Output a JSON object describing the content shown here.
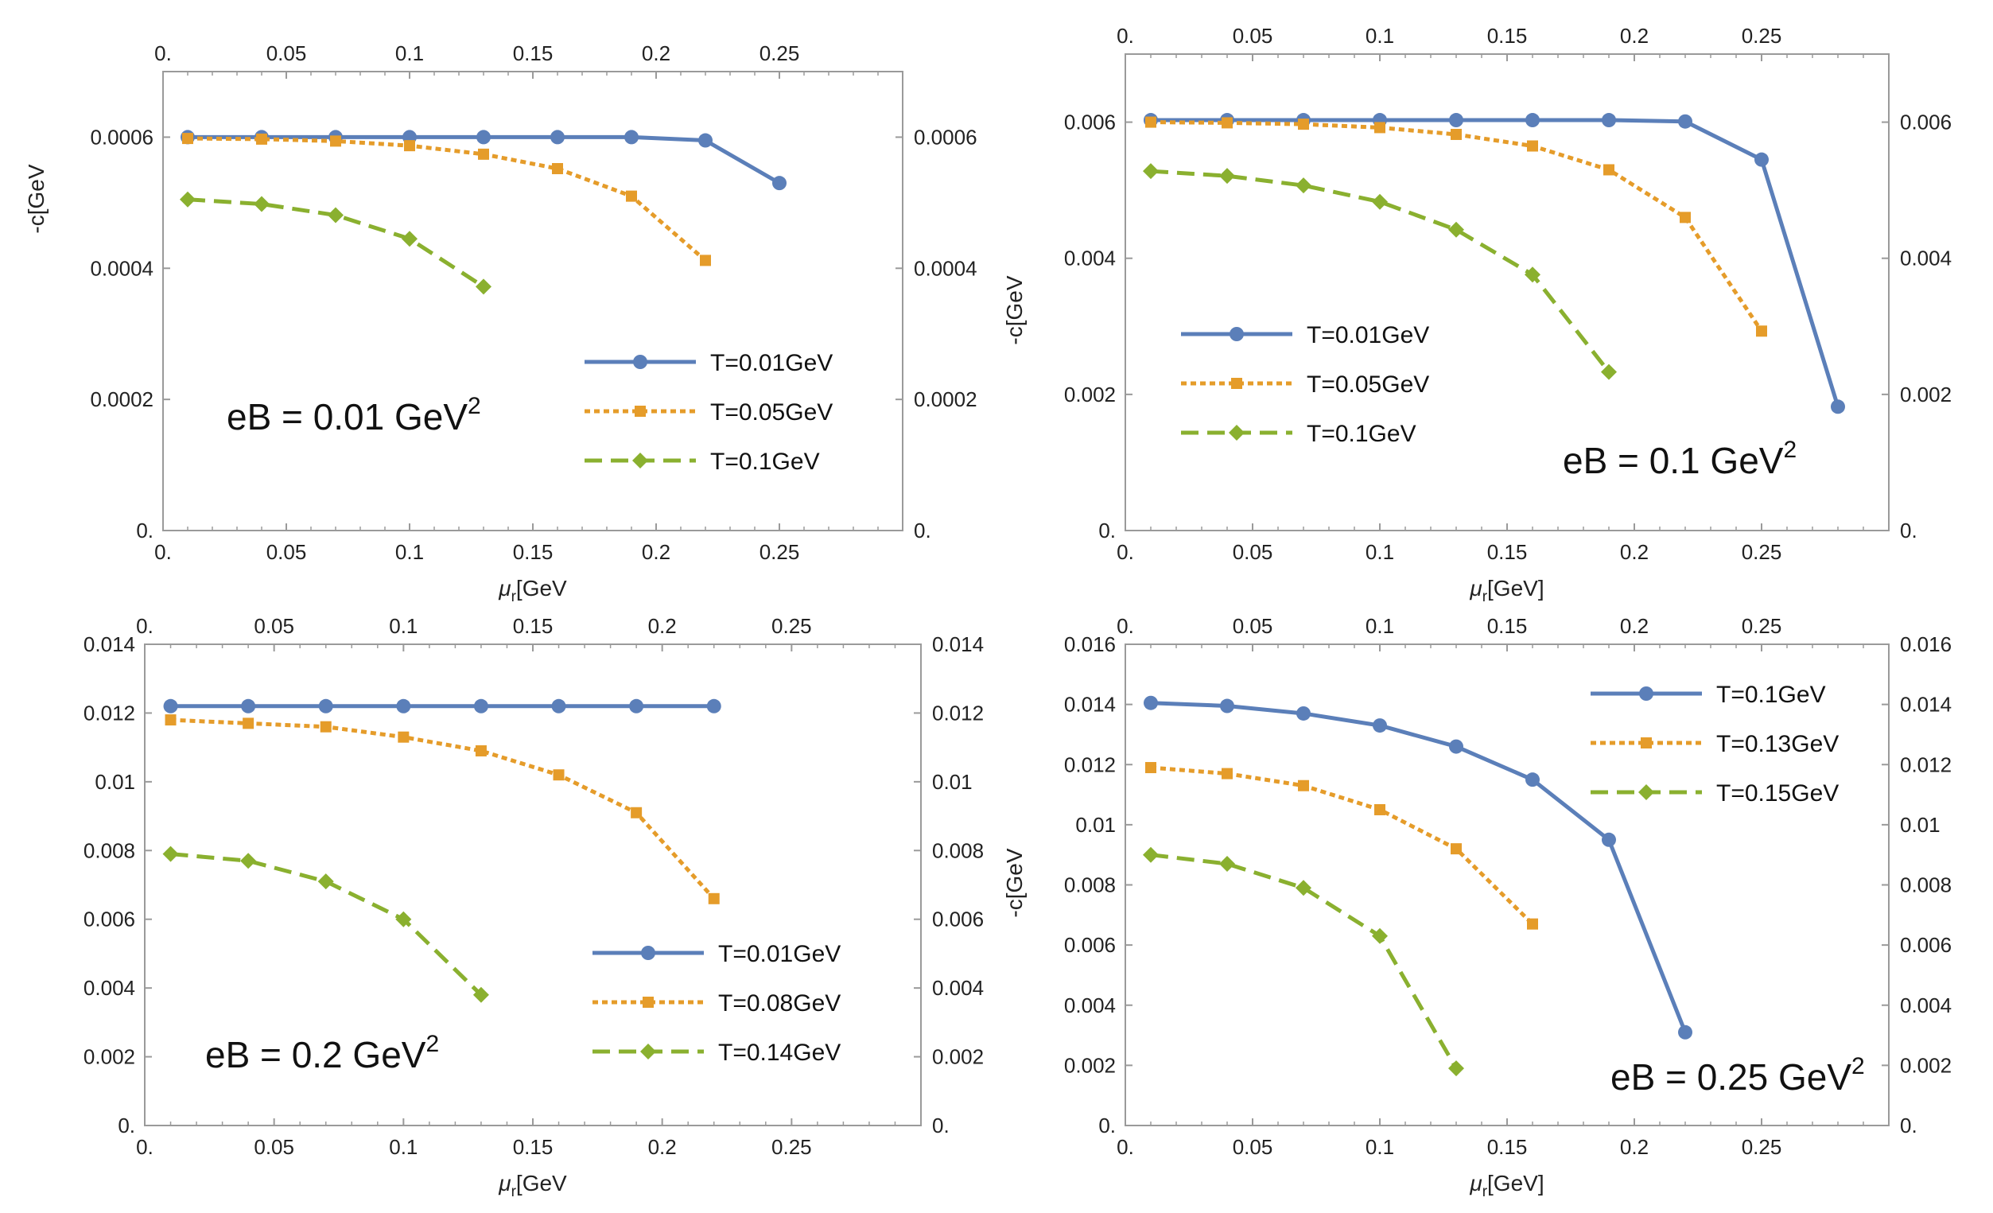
{
  "colors": {
    "blue": "#5B7FB9",
    "orange": "#E59C2A",
    "green": "#8AB02F",
    "frame": "#9a9a9a",
    "text": "#222222"
  },
  "chart_data": [
    {
      "type": "line",
      "annotation": {
        "main": "eB = 0.01 GeV",
        "sup": "2"
      },
      "xlabel": {
        "mu": "μ",
        "sub": "r",
        "rest": "[GeV"
      },
      "ylabel": "-c[GeV",
      "xlim": [
        0,
        0.3
      ],
      "ylim": [
        0,
        0.0007
      ],
      "x_ticks": [
        "0.",
        "0.05",
        "0.1",
        "0.15",
        "0.2",
        "0.25"
      ],
      "y_ticks": [
        "0.",
        "0.0002",
        "0.0004",
        "0.0006"
      ],
      "legend": "right-lower",
      "series": [
        {
          "name": "T=0.01GeV",
          "color": "blue",
          "style": "solid",
          "marker": "circle",
          "x": [
            0.01,
            0.04,
            0.07,
            0.1,
            0.13,
            0.16,
            0.19,
            0.22,
            0.25
          ],
          "y": [
            0.0006,
            0.0006,
            0.0006,
            0.0006,
            0.0006,
            0.0006,
            0.0006,
            0.000595,
            0.00053
          ]
        },
        {
          "name": "T=0.05GeV",
          "color": "orange",
          "style": "dotted",
          "marker": "square",
          "x": [
            0.01,
            0.04,
            0.07,
            0.1,
            0.13,
            0.16,
            0.19,
            0.22
          ],
          "y": [
            0.000598,
            0.000597,
            0.000594,
            0.000587,
            0.000574,
            0.000552,
            0.00051,
            0.000412
          ]
        },
        {
          "name": "T=0.1GeV",
          "color": "green",
          "style": "dashed",
          "marker": "diamond",
          "x": [
            0.01,
            0.04,
            0.07,
            0.1,
            0.13
          ],
          "y": [
            0.000505,
            0.000498,
            0.000481,
            0.000445,
            0.000372
          ]
        }
      ]
    },
    {
      "type": "line",
      "annotation": {
        "main": "eB = 0.1 GeV",
        "sup": "2"
      },
      "xlabel": {
        "mu": "μ",
        "sub": "r",
        "rest": "[GeV]"
      },
      "ylabel": "-c[GeV",
      "xlim": [
        0,
        0.3
      ],
      "ylim": [
        0,
        0.007
      ],
      "x_ticks": [
        "0.",
        "0.05",
        "0.1",
        "0.15",
        "0.2",
        "0.25"
      ],
      "y_ticks": [
        "0.",
        "0.002",
        "0.004",
        "0.006"
      ],
      "legend": "left-lower",
      "series": [
        {
          "name": "T=0.01GeV",
          "color": "blue",
          "style": "solid",
          "marker": "circle",
          "x": [
            0.01,
            0.04,
            0.07,
            0.1,
            0.13,
            0.16,
            0.19,
            0.22,
            0.25,
            0.28
          ],
          "y": [
            0.00603,
            0.00603,
            0.00603,
            0.00603,
            0.00603,
            0.00603,
            0.00603,
            0.00601,
            0.00545,
            0.00182
          ]
        },
        {
          "name": "T=0.05GeV",
          "color": "orange",
          "style": "dotted",
          "marker": "square",
          "x": [
            0.01,
            0.04,
            0.07,
            0.1,
            0.13,
            0.16,
            0.19,
            0.22,
            0.25
          ],
          "y": [
            0.006,
            0.00599,
            0.00597,
            0.00592,
            0.00582,
            0.00565,
            0.0053,
            0.0046,
            0.00293
          ]
        },
        {
          "name": "T=0.1GeV",
          "color": "green",
          "style": "dashed",
          "marker": "diamond",
          "x": [
            0.01,
            0.04,
            0.07,
            0.1,
            0.13,
            0.16,
            0.19
          ],
          "y": [
            0.00528,
            0.00521,
            0.00507,
            0.00483,
            0.00442,
            0.00376,
            0.00233
          ]
        }
      ]
    },
    {
      "type": "line",
      "annotation": {
        "main": "eB = 0.2 GeV",
        "sup": "2"
      },
      "xlabel": {
        "mu": "μ",
        "sub": "r",
        "rest": "[GeV"
      },
      "ylabel": "",
      "xlim": [
        0,
        0.3
      ],
      "ylim": [
        0,
        0.014
      ],
      "x_ticks": [
        "0.",
        "0.05",
        "0.1",
        "0.15",
        "0.2",
        "0.25"
      ],
      "y_ticks": [
        "0.",
        "0.002",
        "0.004",
        "0.006",
        "0.008",
        "0.01",
        "0.012",
        "0.014"
      ],
      "legend": "right-lower",
      "series": [
        {
          "name": "T=0.01GeV",
          "color": "blue",
          "style": "solid",
          "marker": "circle",
          "x": [
            0.01,
            0.04,
            0.07,
            0.1,
            0.13,
            0.16,
            0.19,
            0.22
          ],
          "y": [
            0.0122,
            0.0122,
            0.0122,
            0.0122,
            0.0122,
            0.0122,
            0.0122,
            0.0122
          ]
        },
        {
          "name": "T=0.08GeV",
          "color": "orange",
          "style": "dotted",
          "marker": "square",
          "x": [
            0.01,
            0.04,
            0.07,
            0.1,
            0.13,
            0.16,
            0.19,
            0.22
          ],
          "y": [
            0.0118,
            0.0117,
            0.0116,
            0.0113,
            0.0109,
            0.0102,
            0.0091,
            0.0066
          ]
        },
        {
          "name": "T=0.14GeV",
          "color": "green",
          "style": "dashed",
          "marker": "diamond",
          "x": [
            0.01,
            0.04,
            0.07,
            0.1,
            0.13
          ],
          "y": [
            0.0079,
            0.0077,
            0.0071,
            0.006,
            0.0038
          ]
        }
      ]
    },
    {
      "type": "line",
      "annotation": {
        "main": "eB = 0.25 GeV",
        "sup": "2"
      },
      "xlabel": {
        "mu": "μ",
        "sub": "r",
        "rest": "[GeV]"
      },
      "ylabel": "-c[GeV",
      "xlim": [
        0,
        0.3
      ],
      "ylim": [
        0,
        0.016
      ],
      "x_ticks": [
        "0.",
        "0.05",
        "0.1",
        "0.15",
        "0.2",
        "0.25"
      ],
      "y_ticks": [
        "0.",
        "0.002",
        "0.004",
        "0.006",
        "0.008",
        "0.01",
        "0.012",
        "0.014",
        "0.016"
      ],
      "legend": "top-right",
      "series": [
        {
          "name": "T=0.1GeV",
          "color": "blue",
          "style": "solid",
          "marker": "circle",
          "x": [
            0.01,
            0.04,
            0.07,
            0.1,
            0.13,
            0.16,
            0.19,
            0.22
          ],
          "y": [
            0.01405,
            0.01395,
            0.0137,
            0.0133,
            0.0126,
            0.0115,
            0.0095,
            0.0031
          ]
        },
        {
          "name": "T=0.13GeV",
          "color": "orange",
          "style": "dotted",
          "marker": "square",
          "x": [
            0.01,
            0.04,
            0.07,
            0.1,
            0.13,
            0.16
          ],
          "y": [
            0.0119,
            0.0117,
            0.0113,
            0.0105,
            0.0092,
            0.0067
          ]
        },
        {
          "name": "T=0.15GeV",
          "color": "green",
          "style": "dashed",
          "marker": "diamond",
          "x": [
            0.01,
            0.04,
            0.07,
            0.1,
            0.13
          ],
          "y": [
            0.009,
            0.0087,
            0.0079,
            0.0063,
            0.0019
          ]
        }
      ]
    }
  ]
}
